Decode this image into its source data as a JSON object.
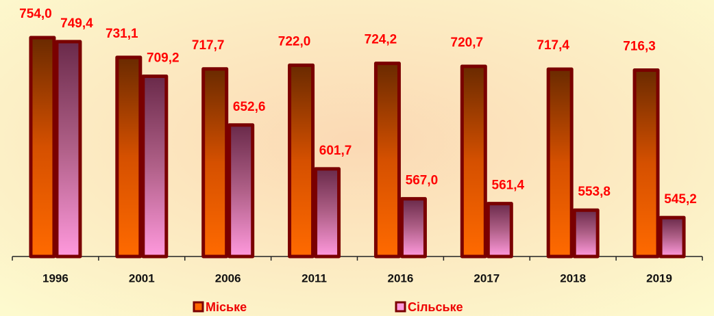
{
  "chart_data": {
    "type": "bar",
    "categories": [
      "1996",
      "2001",
      "2006",
      "2011",
      "2016",
      "2017",
      "2018",
      "2019"
    ],
    "series": [
      {
        "name": "Міське",
        "color": "#ff6600",
        "values": [
          754.0,
          731.1,
          717.7,
          722.0,
          724.2,
          720.7,
          717.4,
          716.3
        ],
        "value_labels": [
          "754,0",
          "731,1",
          "717,7",
          "722,0",
          "724,2",
          "720,7",
          "717,4",
          "716,3"
        ]
      },
      {
        "name": "Сільське",
        "color": "#ff99dd",
        "values": [
          749.4,
          709.2,
          652.6,
          601.7,
          567.0,
          561.4,
          553.8,
          545.2
        ],
        "value_labels": [
          "749,4",
          "709,2",
          "652,6",
          "601,7",
          "567,0",
          "561,4",
          "553,8",
          "545,2"
        ]
      }
    ],
    "ylim": [
      500,
      760
    ]
  }
}
